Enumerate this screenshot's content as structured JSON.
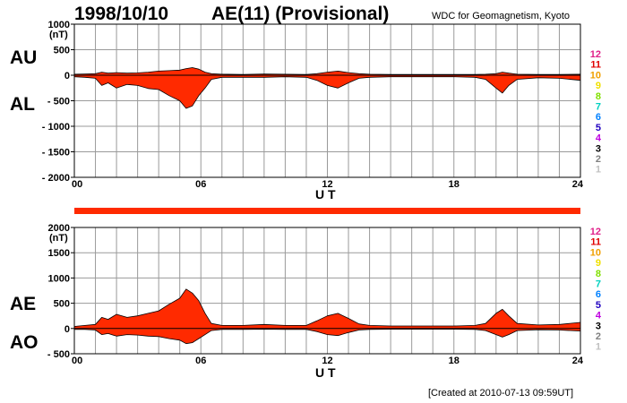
{
  "header": {
    "date": "1998/10/10",
    "index": "AE(11) (Provisional)",
    "organization": "WDC for Geomagnetism, Kyoto"
  },
  "footer": {
    "created": "[Created at 2010-07-13 09:59UT]"
  },
  "station_legend": [
    "12",
    "11",
    "10",
    "9",
    "8",
    "7",
    "6",
    "5",
    "4",
    "3",
    "2",
    "1"
  ],
  "station_colors": [
    "#e0208a",
    "#e00000",
    "#f0a000",
    "#f0e000",
    "#80e000",
    "#00d0c0",
    "#0080ff",
    "#2000c0",
    "#c000e0",
    "#000000",
    "#808080",
    "#c0c0c0"
  ],
  "chart_data": [
    {
      "type": "area",
      "id": "AU/AL",
      "upper_label": "AU",
      "lower_label": "AL",
      "ylim": [
        -2000,
        1000
      ],
      "yticks": [
        1000,
        500,
        0,
        -500,
        -1000,
        -1500,
        -2000
      ],
      "ytick_labels": [
        "1000",
        "500",
        "0",
        "- 500",
        "- 1000",
        "- 1500",
        "- 2000"
      ],
      "unit": "(nT)",
      "xlim": [
        0,
        24
      ],
      "xticks": [
        0,
        6,
        12,
        18,
        24
      ],
      "xtick_labels": [
        "00",
        "06",
        "12",
        "18",
        "24"
      ],
      "xlabel": "U T",
      "fill_color": "#ff2a00",
      "series": [
        {
          "name": "AU",
          "x": [
            0,
            0.5,
            1,
            1.3,
            1.6,
            2,
            2.5,
            3,
            3.5,
            4,
            4.5,
            5,
            5.3,
            5.6,
            5.9,
            6.2,
            6.5,
            7,
            8,
            9,
            10,
            11,
            11.5,
            12,
            12.5,
            13,
            13.5,
            14,
            15,
            16,
            17,
            18,
            19,
            19.5,
            20,
            20.3,
            20.6,
            21,
            22,
            23,
            24
          ],
          "y": [
            20,
            25,
            30,
            60,
            40,
            50,
            40,
            45,
            60,
            80,
            90,
            100,
            130,
            150,
            120,
            60,
            30,
            20,
            15,
            25,
            20,
            15,
            30,
            60,
            80,
            50,
            30,
            20,
            15,
            15,
            15,
            15,
            15,
            20,
            30,
            60,
            40,
            20,
            15,
            15,
            20
          ]
        },
        {
          "name": "AL",
          "x": [
            0,
            0.5,
            1,
            1.3,
            1.6,
            2,
            2.5,
            3,
            3.5,
            4,
            4.5,
            5,
            5.3,
            5.6,
            5.9,
            6.2,
            6.5,
            7,
            8,
            9,
            10,
            11,
            11.5,
            12,
            12.5,
            13,
            13.5,
            14,
            15,
            16,
            17,
            18,
            19,
            19.5,
            20,
            20.3,
            20.6,
            21,
            22,
            23,
            24
          ],
          "y": [
            -30,
            -40,
            -60,
            -200,
            -150,
            -250,
            -180,
            -200,
            -260,
            -280,
            -400,
            -500,
            -650,
            -600,
            -400,
            -250,
            -80,
            -40,
            -40,
            -40,
            -30,
            -40,
            -100,
            -200,
            -250,
            -150,
            -60,
            -40,
            -30,
            -30,
            -30,
            -30,
            -40,
            -80,
            -250,
            -350,
            -200,
            -80,
            -50,
            -60,
            -100
          ]
        }
      ],
      "band_color": "#ff2a00"
    },
    {
      "type": "area",
      "id": "AE/AO",
      "upper_label": "AE",
      "lower_label": "AO",
      "ylim": [
        -500,
        2000
      ],
      "yticks": [
        2000,
        1500,
        1000,
        500,
        0,
        -500
      ],
      "ytick_labels": [
        "2000",
        "1500",
        "1000",
        "500",
        "0",
        "- 500"
      ],
      "unit": "(nT)",
      "xlim": [
        0,
        24
      ],
      "xticks": [
        0,
        6,
        12,
        18,
        24
      ],
      "xtick_labels": [
        "00",
        "06",
        "12",
        "18",
        "24"
      ],
      "xlabel": "U T",
      "fill_color": "#ff2a00",
      "series": [
        {
          "name": "AE",
          "x": [
            0,
            0.5,
            1,
            1.3,
            1.6,
            2,
            2.5,
            3,
            3.5,
            4,
            4.5,
            5,
            5.3,
            5.6,
            5.9,
            6.2,
            6.5,
            7,
            8,
            9,
            10,
            11,
            11.5,
            12,
            12.5,
            13,
            13.5,
            14,
            15,
            16,
            17,
            18,
            19,
            19.5,
            20,
            20.3,
            20.6,
            21,
            22,
            23,
            24
          ],
          "y": [
            40,
            60,
            80,
            220,
            180,
            280,
            220,
            250,
            300,
            350,
            480,
            600,
            780,
            700,
            550,
            300,
            100,
            60,
            60,
            80,
            60,
            60,
            150,
            250,
            300,
            200,
            90,
            60,
            50,
            50,
            50,
            50,
            60,
            100,
            300,
            380,
            250,
            100,
            70,
            80,
            120
          ]
        },
        {
          "name": "AO",
          "x": [
            0,
            0.5,
            1,
            1.3,
            1.6,
            2,
            2.5,
            3,
            3.5,
            4,
            4.5,
            5,
            5.3,
            5.6,
            5.9,
            6.2,
            6.5,
            7,
            8,
            9,
            10,
            11,
            11.5,
            12,
            12.5,
            13,
            13.5,
            14,
            15,
            16,
            17,
            18,
            19,
            19.5,
            20,
            20.3,
            20.6,
            21,
            22,
            23,
            24
          ],
          "y": [
            -20,
            -20,
            -30,
            -120,
            -100,
            -150,
            -120,
            -130,
            -150,
            -160,
            -200,
            -230,
            -300,
            -280,
            -200,
            -120,
            -40,
            -20,
            -20,
            -15,
            -20,
            -20,
            -60,
            -120,
            -140,
            -80,
            -30,
            -20,
            -15,
            -15,
            -15,
            -15,
            -20,
            -40,
            -120,
            -170,
            -120,
            -40,
            -25,
            -30,
            -50
          ]
        }
      ]
    }
  ]
}
